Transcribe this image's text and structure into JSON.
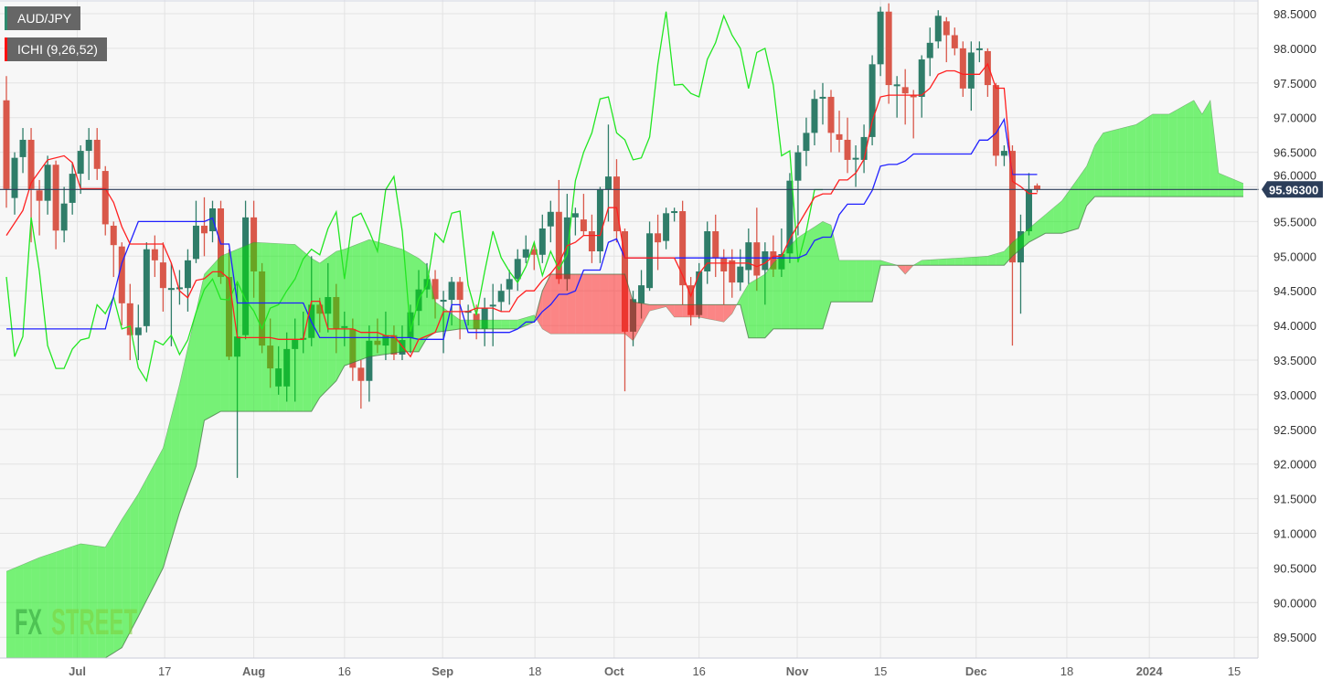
{
  "header": {
    "symbol": "AUD/JPY",
    "indicator": "ICHI (9,26,52)"
  },
  "logo": {
    "text_a": "FX",
    "text_b": "STREET"
  },
  "colors": {
    "background": "#f7f7f7",
    "grid": "#e3e3e3",
    "up_candle": "#2f7d69",
    "down_candle": "#d9584a",
    "tenkan": "#ff2020",
    "kijun": "#2020ff",
    "chikou": "#22e622",
    "cloud_bull": "rgba(0,235,0,0.52)",
    "cloud_bear": "rgba(255,20,20,0.5)",
    "price_line": "#2c3e5a"
  },
  "chart_data": {
    "type": "candlestick",
    "title": "AUD/JPY",
    "indicator": "Ichimoku (9,26,52)",
    "ylim": [
      89.25,
      98.7
    ],
    "xlim_index": [
      0,
      151
    ],
    "grid": true,
    "current_price": 95.963,
    "current_price_label": "95.96300",
    "y_ticks": [
      "98.5000",
      "98.0000",
      "97.5000",
      "97.0000",
      "96.5000",
      "96.0000",
      "95.5000",
      "95.0000",
      "94.5000",
      "94.0000",
      "93.5000",
      "93.0000",
      "92.5000",
      "92.0000",
      "91.5000",
      "91.0000",
      "90.5000",
      "90.0000",
      "89.5000"
    ],
    "x_ticks": [
      {
        "label": "Jul",
        "index": 8.6,
        "major": true
      },
      {
        "label": "17",
        "index": 19.2,
        "major": false
      },
      {
        "label": "Aug",
        "index": 30.0,
        "major": true
      },
      {
        "label": "16",
        "index": 41.0,
        "major": false
      },
      {
        "label": "Sep",
        "index": 52.9,
        "major": true
      },
      {
        "label": "18",
        "index": 64.1,
        "major": false
      },
      {
        "label": "Oct",
        "index": 73.7,
        "major": true
      },
      {
        "label": "16",
        "index": 84.0,
        "major": false
      },
      {
        "label": "Nov",
        "index": 95.9,
        "major": true
      },
      {
        "label": "15",
        "index": 106.0,
        "major": false
      },
      {
        "label": "Dec",
        "index": 117.6,
        "major": true
      },
      {
        "label": "18",
        "index": 128.6,
        "major": false
      },
      {
        "label": "2024",
        "index": 138.6,
        "major": true
      },
      {
        "label": "15",
        "index": 148.9,
        "major": false
      }
    ],
    "candles_ohlc": [
      [
        97.25,
        97.6,
        95.7,
        95.97
      ],
      [
        95.84,
        96.5,
        95.6,
        96.42
      ],
      [
        96.43,
        96.85,
        96.2,
        96.68
      ],
      [
        96.68,
        96.85,
        95.2,
        95.97
      ],
      [
        95.95,
        96.1,
        95.3,
        95.8
      ],
      [
        95.8,
        96.45,
        95.6,
        96.32
      ],
      [
        96.32,
        96.38,
        95.1,
        95.37
      ],
      [
        95.37,
        96.0,
        95.2,
        95.76
      ],
      [
        95.77,
        96.35,
        95.6,
        96.19
      ],
      [
        96.19,
        96.6,
        95.9,
        96.52
      ],
      [
        96.52,
        96.85,
        96.1,
        96.68
      ],
      [
        96.68,
        96.85,
        96.1,
        96.26
      ],
      [
        96.23,
        96.3,
        95.3,
        95.46
      ],
      [
        95.44,
        95.5,
        94.7,
        95.16
      ],
      [
        95.14,
        95.2,
        94.0,
        94.32
      ],
      [
        94.32,
        94.6,
        93.5,
        93.86
      ],
      [
        93.86,
        94.3,
        93.5,
        93.97
      ],
      [
        93.99,
        95.2,
        93.9,
        95.1
      ],
      [
        95.1,
        95.3,
        94.7,
        94.94
      ],
      [
        94.91,
        95.2,
        94.2,
        94.54
      ],
      [
        94.54,
        94.9,
        93.7,
        94.54
      ],
      [
        94.54,
        94.8,
        94.3,
        94.55
      ],
      [
        94.54,
        95.1,
        94.2,
        94.94
      ],
      [
        94.96,
        95.8,
        94.9,
        95.44
      ],
      [
        95.44,
        95.85,
        95.0,
        95.33
      ],
      [
        95.36,
        95.8,
        95.2,
        95.69
      ],
      [
        95.69,
        95.8,
        94.6,
        94.7
      ],
      [
        94.7,
        95.1,
        93.5,
        93.55
      ],
      [
        93.55,
        94.6,
        91.8,
        93.84
      ],
      [
        93.86,
        95.8,
        93.8,
        95.56
      ],
      [
        95.56,
        95.8,
        94.4,
        94.78
      ],
      [
        94.78,
        94.9,
        93.6,
        93.71
      ],
      [
        93.71,
        94.1,
        93.1,
        93.38
      ],
      [
        93.12,
        93.7,
        93.0,
        93.38
      ],
      [
        93.12,
        93.9,
        92.9,
        93.66
      ],
      [
        93.66,
        94.1,
        92.9,
        93.79
      ],
      [
        93.8,
        94.2,
        93.6,
        93.82
      ],
      [
        93.82,
        95.0,
        93.7,
        94.3
      ],
      [
        94.3,
        94.4,
        93.9,
        94.17
      ],
      [
        94.17,
        94.9,
        93.9,
        94.41
      ],
      [
        94.41,
        94.6,
        93.6,
        93.95
      ],
      [
        93.97,
        94.2,
        93.7,
        93.99
      ],
      [
        93.95,
        94.1,
        93.2,
        93.39
      ],
      [
        93.39,
        93.5,
        92.8,
        93.2
      ],
      [
        93.2,
        94.0,
        92.9,
        93.78
      ],
      [
        93.78,
        94.1,
        93.6,
        93.72
      ],
      [
        93.71,
        94.2,
        93.5,
        93.86
      ],
      [
        93.86,
        94.0,
        93.5,
        93.58
      ],
      [
        93.58,
        94.0,
        93.5,
        93.79
      ],
      [
        93.82,
        94.3,
        93.6,
        94.19
      ],
      [
        94.21,
        94.8,
        94.0,
        94.52
      ],
      [
        94.52,
        94.9,
        94.4,
        94.67
      ],
      [
        94.67,
        94.8,
        94.1,
        94.38
      ],
      [
        94.37,
        94.5,
        93.6,
        94.37
      ],
      [
        94.37,
        94.7,
        94.0,
        94.63
      ],
      [
        94.63,
        94.7,
        93.8,
        94.37
      ],
      [
        94.21,
        94.3,
        94.0,
        94.21
      ],
      [
        94.17,
        94.3,
        93.8,
        93.95
      ],
      [
        93.95,
        94.4,
        93.7,
        94.25
      ],
      [
        94.3,
        94.6,
        93.7,
        94.3
      ],
      [
        94.34,
        94.6,
        94.2,
        94.5
      ],
      [
        94.52,
        94.8,
        94.3,
        94.67
      ],
      [
        94.67,
        95.1,
        94.5,
        94.96
      ],
      [
        94.98,
        95.3,
        94.9,
        95.1
      ],
      [
        95.1,
        95.2,
        94.8,
        95.02
      ],
      [
        95.02,
        95.6,
        94.9,
        95.4
      ],
      [
        95.43,
        95.8,
        95.2,
        95.64
      ],
      [
        95.64,
        96.1,
        94.6,
        94.67
      ],
      [
        94.67,
        95.9,
        94.5,
        95.56
      ],
      [
        95.56,
        95.7,
        95.3,
        95.62
      ],
      [
        95.53,
        95.9,
        95.3,
        95.36
      ],
      [
        95.36,
        95.6,
        94.9,
        95.07
      ],
      [
        95.07,
        96.0,
        94.9,
        95.96
      ],
      [
        95.96,
        96.9,
        95.5,
        96.15
      ],
      [
        96.15,
        96.4,
        95.2,
        95.36
      ],
      [
        95.36,
        95.4,
        93.05,
        93.91
      ],
      [
        93.91,
        94.5,
        93.7,
        94.38
      ],
      [
        94.32,
        94.8,
        94.1,
        94.58
      ],
      [
        94.54,
        95.5,
        94.5,
        95.33
      ],
      [
        95.33,
        95.6,
        94.8,
        95.2
      ],
      [
        95.22,
        95.7,
        95.1,
        95.62
      ],
      [
        95.65,
        95.7,
        95.5,
        95.65
      ],
      [
        95.65,
        95.8,
        94.3,
        94.58
      ],
      [
        94.58,
        94.7,
        94.0,
        94.15
      ],
      [
        94.15,
        94.9,
        94.1,
        94.78
      ],
      [
        94.78,
        95.5,
        94.6,
        95.36
      ],
      [
        95.36,
        95.6,
        94.7,
        94.98
      ],
      [
        94.98,
        95.1,
        94.3,
        94.78
      ],
      [
        94.94,
        95.1,
        94.4,
        94.62
      ],
      [
        94.62,
        95.1,
        94.5,
        94.85
      ],
      [
        94.8,
        95.4,
        94.6,
        95.2
      ],
      [
        95.2,
        95.7,
        94.5,
        94.72
      ],
      [
        94.8,
        95.2,
        94.3,
        95.07
      ],
      [
        95.07,
        95.3,
        94.7,
        94.81
      ],
      [
        94.81,
        95.4,
        94.7,
        95.03
      ],
      [
        95.04,
        96.2,
        94.9,
        96.09
      ],
      [
        96.09,
        96.6,
        95.3,
        96.5
      ],
      [
        96.52,
        97.0,
        96.3,
        96.78
      ],
      [
        96.78,
        97.4,
        96.6,
        97.27
      ],
      [
        97.3,
        97.5,
        96.9,
        97.3
      ],
      [
        97.3,
        97.4,
        96.5,
        96.78
      ],
      [
        96.76,
        97.1,
        96.5,
        96.68
      ],
      [
        96.68,
        97.0,
        96.2,
        96.39
      ],
      [
        96.42,
        96.6,
        96.0,
        96.42
      ],
      [
        96.39,
        96.9,
        96.2,
        96.72
      ],
      [
        96.72,
        97.9,
        96.6,
        97.77
      ],
      [
        97.77,
        98.6,
        97.6,
        98.53
      ],
      [
        98.53,
        98.65,
        97.2,
        97.47
      ],
      [
        97.48,
        97.6,
        97.0,
        97.48
      ],
      [
        97.44,
        97.7,
        96.9,
        97.35
      ],
      [
        97.32,
        97.4,
        96.7,
        97.3
      ],
      [
        97.3,
        97.9,
        97.0,
        97.84
      ],
      [
        97.86,
        98.3,
        97.6,
        98.08
      ],
      [
        98.1,
        98.55,
        98.0,
        98.47
      ],
      [
        98.39,
        98.45,
        97.8,
        98.19
      ],
      [
        98.19,
        98.3,
        97.9,
        98.0
      ],
      [
        98.0,
        98.1,
        97.3,
        97.42
      ],
      [
        97.42,
        98.1,
        97.1,
        97.94
      ],
      [
        98.0,
        98.1,
        97.8,
        98.0
      ],
      [
        97.96,
        98.0,
        97.3,
        97.47
      ],
      [
        97.47,
        97.5,
        96.3,
        96.45
      ],
      [
        96.45,
        96.6,
        96.3,
        96.52
      ],
      [
        96.52,
        96.6,
        93.71,
        94.91
      ],
      [
        94.91,
        95.6,
        94.17,
        95.36
      ],
      [
        95.36,
        96.2,
        95.3,
        95.96
      ],
      [
        96.02,
        96.05,
        95.92,
        95.96
      ]
    ],
    "tenkan_start": [
      [
        0,
        95.3
      ],
      [
        2,
        95.66
      ],
      [
        3,
        96.06
      ],
      [
        5,
        96.39
      ],
      [
        7,
        96.45
      ]
    ],
    "kijun_start": [
      [
        0,
        93.95
      ],
      [
        12,
        93.95
      ],
      [
        14,
        94.9
      ],
      [
        16,
        95.5
      ],
      [
        24,
        95.5
      ]
    ],
    "cloud_spans": [
      [
        0,
        90.45,
        89.2
      ],
      [
        4,
        90.65,
        89.2
      ],
      [
        9,
        90.85,
        89.2
      ],
      [
        12,
        90.8,
        89.2
      ],
      [
        14,
        91.2,
        89.35
      ],
      [
        16,
        91.57,
        89.8
      ],
      [
        19,
        92.23,
        90.5
      ],
      [
        21,
        93.15,
        91.3
      ],
      [
        23,
        94.2,
        91.97
      ],
      [
        24,
        94.74,
        92.63
      ],
      [
        26,
        95.0,
        92.76
      ],
      [
        30,
        95.2,
        92.76
      ],
      [
        35,
        95.17,
        92.76
      ],
      [
        37,
        94.97,
        92.76
      ],
      [
        38,
        94.9,
        92.96
      ],
      [
        40,
        95.07,
        93.2
      ],
      [
        41,
        95.1,
        93.42
      ],
      [
        44,
        95.24,
        93.55
      ],
      [
        48,
        95.1,
        93.62
      ],
      [
        50,
        94.97,
        93.62
      ],
      [
        51,
        94.87,
        93.82
      ],
      [
        52,
        94.34,
        93.9
      ],
      [
        55,
        94.08,
        93.95
      ],
      [
        62,
        94.08,
        93.95
      ],
      [
        64,
        94.15,
        94.05
      ],
      [
        65,
        93.95,
        94.5
      ],
      [
        66,
        93.88,
        94.74
      ],
      [
        75,
        93.88,
        94.74
      ],
      [
        76,
        93.78,
        94.34
      ],
      [
        78,
        94.21,
        94.3
      ],
      [
        80,
        94.27,
        94.3
      ],
      [
        81,
        94.12,
        94.3
      ],
      [
        84,
        94.12,
        94.3
      ],
      [
        87,
        94.05,
        94.3
      ],
      [
        88,
        94.17,
        94.3
      ],
      [
        89,
        94.4,
        94.3
      ],
      [
        90,
        94.6,
        93.82
      ],
      [
        92,
        94.74,
        93.82
      ],
      [
        93,
        94.9,
        93.95
      ],
      [
        96,
        95.27,
        93.95
      ],
      [
        99,
        95.5,
        93.95
      ],
      [
        100,
        95.45,
        94.34
      ],
      [
        101,
        94.94,
        94.34
      ],
      [
        105,
        94.94,
        94.34
      ],
      [
        106,
        94.94,
        94.87
      ],
      [
        108,
        94.87,
        94.87
      ],
      [
        109,
        94.74,
        94.87
      ],
      [
        110,
        94.87,
        94.87
      ],
      [
        111,
        94.94,
        94.87
      ],
      [
        119,
        95.0,
        94.87
      ],
      [
        121,
        95.07,
        94.87
      ],
      [
        122,
        95.2,
        95.0
      ],
      [
        124,
        95.4,
        95.2
      ],
      [
        126,
        95.6,
        95.33
      ],
      [
        128,
        95.8,
        95.33
      ],
      [
        130,
        96.13,
        95.4
      ],
      [
        131,
        96.3,
        95.73
      ],
      [
        132,
        96.6,
        95.86
      ],
      [
        133,
        96.78,
        95.86
      ],
      [
        137,
        96.9,
        95.86
      ],
      [
        139,
        97.05,
        95.86
      ],
      [
        141,
        97.05,
        95.86
      ],
      [
        144,
        97.25,
        95.86
      ],
      [
        145,
        97.05,
        95.86
      ],
      [
        146,
        97.25,
        95.86
      ],
      [
        147,
        96.2,
        95.86
      ],
      [
        149,
        96.1,
        95.86
      ],
      [
        150,
        96.05,
        95.86
      ]
    ]
  }
}
